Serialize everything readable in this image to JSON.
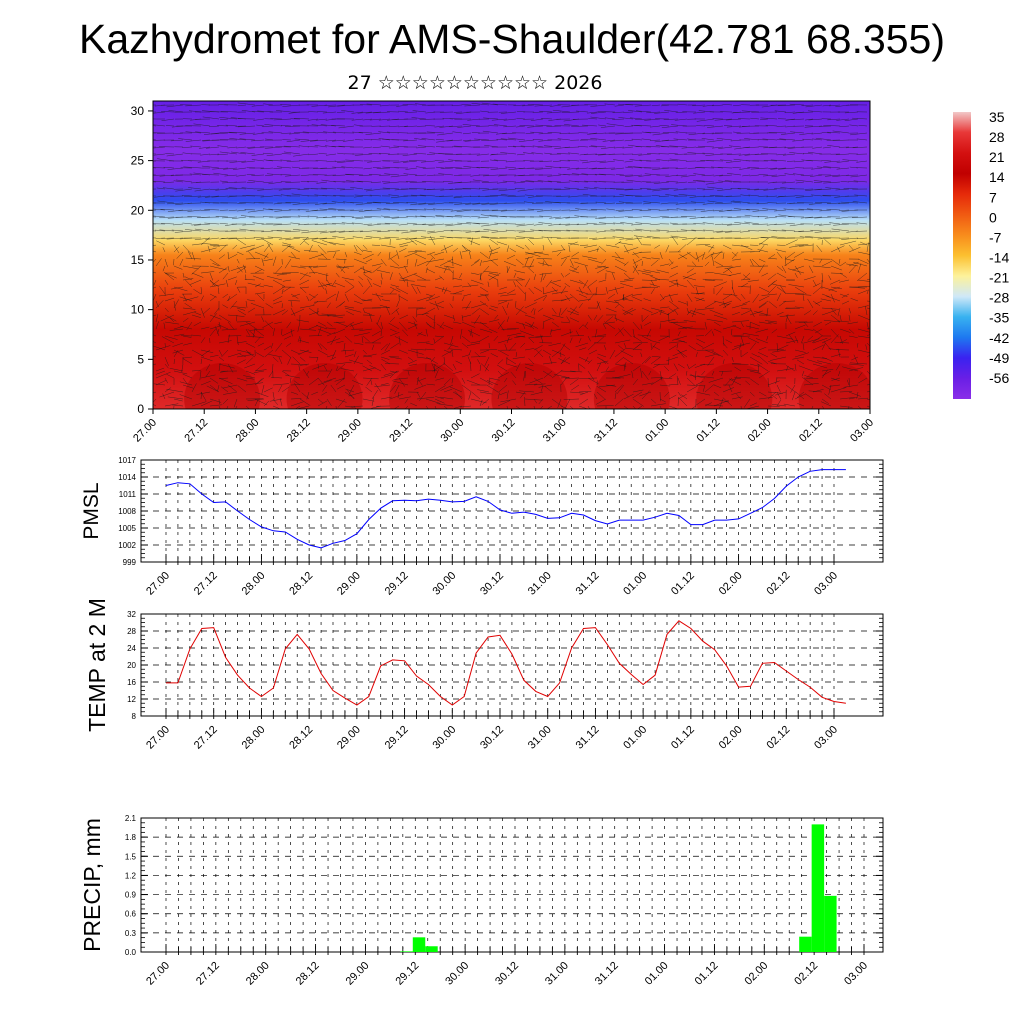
{
  "title": "Kazhydromet for AMS-Shaulder(42.781 68.355)",
  "subtitle": "27 ☆☆☆☆☆☆☆☆☆☆ 2026",
  "time_labels": [
    "27.00",
    "27.12",
    "28.00",
    "28.12",
    "29.00",
    "29.12",
    "30.00",
    "30.12",
    "31.00",
    "31.12",
    "01.00",
    "01.12",
    "02.00",
    "02.12",
    "03.00"
  ],
  "chart_data": [
    {
      "type": "heatmap",
      "name": "temperature cross-section with wind vectors",
      "x_labels": [
        "27.00",
        "27.12",
        "28.00",
        "28.12",
        "29.00",
        "29.12",
        "30.00",
        "30.12",
        "31.00",
        "31.12",
        "01.00",
        "01.12",
        "02.00",
        "02.12",
        "03.00"
      ],
      "ylim": [
        0,
        31
      ],
      "yticks": [
        0,
        5,
        10,
        15,
        20,
        25,
        30
      ],
      "colorbar": {
        "labels": [
          "35",
          "28",
          "21",
          "14",
          "7",
          "0",
          "-7",
          "-14",
          "-21",
          "-28",
          "-35",
          "-42",
          "-49",
          "-56"
        ],
        "colors": [
          "#f2c8c8",
          "#e83838",
          "#d41010",
          "#c00000",
          "#e62a0a",
          "#f05a12",
          "#f88c1c",
          "#fcc030",
          "#fdf29a",
          "#cfe8f8",
          "#38b2f0",
          "#1e78f0",
          "#3a22f0",
          "#6a1fe6",
          "#8a2ee8"
        ]
      },
      "layers": [
        {
          "z": 0,
          "temp": 28
        },
        {
          "z": 4,
          "temp": 23
        },
        {
          "z": 8,
          "temp": 15
        },
        {
          "z": 12,
          "temp": 6
        },
        {
          "z": 15.5,
          "temp": -4
        },
        {
          "z": 17,
          "temp": -16
        },
        {
          "z": 19,
          "temp": -28
        },
        {
          "z": 21,
          "temp": -45
        },
        {
          "z": 23,
          "temp": -60
        },
        {
          "z": 26,
          "temp": -62
        },
        {
          "z": 31,
          "temp": -55
        }
      ]
    },
    {
      "type": "line",
      "ylabel": "PMSL",
      "ylim": [
        999,
        1017
      ],
      "yticks": [
        999,
        1002,
        1005,
        1008,
        1011,
        1014,
        1017
      ],
      "color": "#0000ff",
      "x_labels": [
        "27.00",
        "27.12",
        "28.00",
        "28.12",
        "29.00",
        "29.12",
        "30.00",
        "30.12",
        "31.00",
        "31.12",
        "01.00",
        "01.12",
        "02.00",
        "02.12",
        "03.00"
      ],
      "values": [
        1012.5,
        1013.0,
        1012.8,
        1011.0,
        1009.5,
        1009.6,
        1008.0,
        1006.5,
        1005.2,
        1004.5,
        1004.3,
        1003.0,
        1002.0,
        1001.5,
        1002.3,
        1002.8,
        1004.0,
        1006.5,
        1008.5,
        1009.8,
        1009.9,
        1009.8,
        1010.1,
        1009.9,
        1009.6,
        1009.7,
        1010.5,
        1009.7,
        1008.2,
        1007.6,
        1007.8,
        1007.4,
        1006.7,
        1006.8,
        1007.6,
        1007.3,
        1006.3,
        1005.7,
        1006.4,
        1006.4,
        1006.4,
        1006.9,
        1007.6,
        1007.2,
        1005.6,
        1005.6,
        1006.4,
        1006.4,
        1006.6,
        1007.6,
        1008.6,
        1010.2,
        1012.4,
        1014.0,
        1015.0,
        1015.3,
        1015.3,
        1015.3
      ]
    },
    {
      "type": "line",
      "ylabel": "TEMP at 2 M",
      "ylim": [
        8,
        32
      ],
      "yticks": [
        8,
        12,
        16,
        20,
        24,
        28,
        32
      ],
      "color": "#e00000",
      "x_labels": [
        "27.00",
        "27.12",
        "28.00",
        "28.12",
        "29.00",
        "29.12",
        "30.00",
        "30.12",
        "31.00",
        "31.12",
        "01.00",
        "01.12",
        "02.00",
        "02.12",
        "03.00"
      ],
      "values": [
        15.8,
        15.8,
        23.8,
        28.6,
        28.8,
        21.8,
        17.6,
        14.6,
        12.6,
        14.6,
        23.8,
        27.2,
        23.8,
        18.0,
        14.0,
        12.2,
        10.6,
        12.6,
        19.8,
        21.2,
        21.0,
        17.4,
        15.4,
        12.6,
        10.6,
        12.6,
        22.8,
        26.6,
        27.0,
        22.6,
        16.4,
        13.8,
        12.6,
        15.8,
        24.0,
        28.6,
        28.8,
        24.8,
        20.4,
        17.8,
        15.4,
        17.6,
        27.2,
        30.4,
        28.6,
        25.6,
        23.6,
        19.8,
        14.8,
        15.0,
        20.4,
        20.6,
        18.6,
        16.6,
        14.8,
        12.4,
        11.4,
        11.0
      ]
    },
    {
      "type": "bar",
      "ylabel": "PRECIP, mm",
      "ylim": [
        0,
        2.1
      ],
      "yticks": [
        0.0,
        0.3,
        0.6,
        0.9,
        1.2,
        1.5,
        1.8,
        2.1
      ],
      "color": "#00ff00",
      "x_labels": [
        "27.00",
        "27.12",
        "28.00",
        "28.12",
        "29.00",
        "29.12",
        "30.00",
        "30.12",
        "31.00",
        "31.12",
        "01.00",
        "01.12",
        "02.00",
        "02.12",
        "03.00"
      ],
      "bars": [
        {
          "step": 19.3,
          "value": 0.01
        },
        {
          "step": 20.3,
          "value": 0.23
        },
        {
          "step": 21.3,
          "value": 0.09
        },
        {
          "step": 51.3,
          "value": 0.24
        },
        {
          "step": 52.3,
          "value": 2.0
        },
        {
          "step": 53.3,
          "value": 0.88
        }
      ]
    }
  ]
}
